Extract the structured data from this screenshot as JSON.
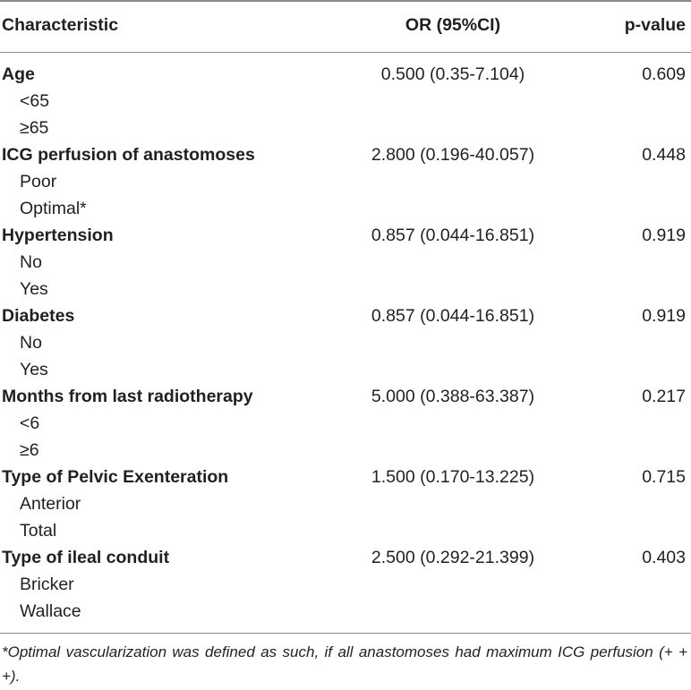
{
  "table": {
    "headers": {
      "characteristic": "Characteristic",
      "or": "OR (95%CI)",
      "p": "p-value"
    },
    "rows": [
      {
        "label": "Age",
        "or": "0.500 (0.35-7.104)",
        "p": "0.609",
        "subs": [
          "<65",
          "≥65"
        ]
      },
      {
        "label": "ICG perfusion of anastomoses",
        "or": "2.800 (0.196-40.057)",
        "p": "0.448",
        "subs": [
          "Poor",
          "Optimal*"
        ]
      },
      {
        "label": "Hypertension",
        "or": "0.857 (0.044-16.851)",
        "p": "0.919",
        "subs": [
          "No",
          "Yes"
        ]
      },
      {
        "label": "Diabetes",
        "or": "0.857 (0.044-16.851)",
        "p": "0.919",
        "subs": [
          "No",
          "Yes"
        ]
      },
      {
        "label": "Months from last radiotherapy",
        "or": "5.000 (0.388-63.387)",
        "p": "0.217",
        "subs": [
          "<6",
          "≥6"
        ]
      },
      {
        "label": "Type of Pelvic Exenteration",
        "or": "1.500 (0.170-13.225)",
        "p": "0.715",
        "subs": [
          "Anterior",
          "Total"
        ]
      },
      {
        "label": "Type of ileal conduit",
        "or": "2.500 (0.292-21.399)",
        "p": "0.403",
        "subs": [
          "Bricker",
          "Wallace"
        ]
      }
    ]
  },
  "footnote": "*Optimal vascularization was defined as such, if all anastomoses had maximum ICG perfusion (+ + +)."
}
